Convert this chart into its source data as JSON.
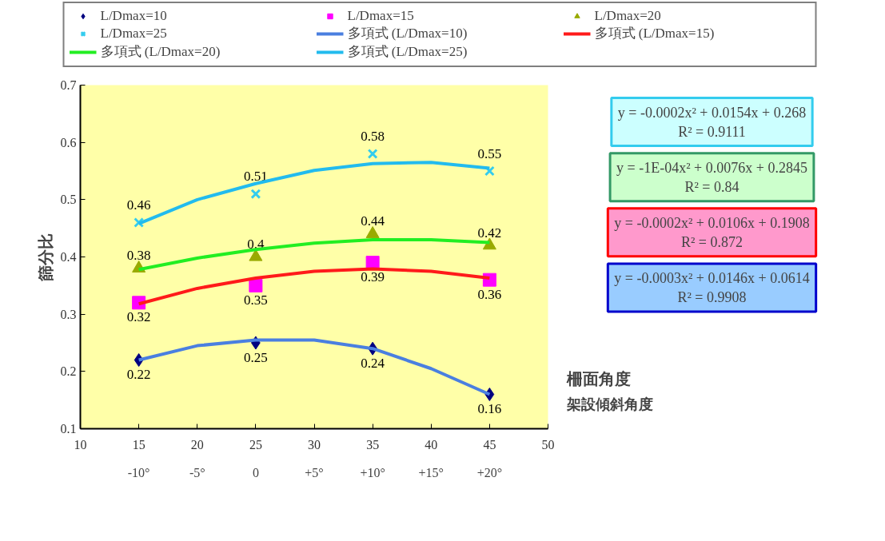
{
  "chart_data": {
    "type": "scatter",
    "xlabel": "柵面角度",
    "x2label": "架設傾斜角度",
    "ylabel": "篩分比",
    "xlim": [
      10,
      50
    ],
    "xticks": [
      10,
      15,
      20,
      25,
      30,
      35,
      40,
      45,
      50
    ],
    "x2lim": [
      -15,
      25
    ],
    "x2ticks": [
      {
        "value": -10,
        "label": "-10°"
      },
      {
        "value": -5,
        "label": "-5°"
      },
      0,
      {
        "value": 5,
        "label": "+5°"
      },
      {
        "value": 10,
        "label": "+10°"
      },
      {
        "value": 15,
        "label": "+15°"
      },
      {
        "value": 20,
        "label": "+20°"
      }
    ],
    "ylim": [
      0.1,
      0.7
    ],
    "yticks": [
      0.1,
      0.2,
      0.3,
      0.4,
      0.5,
      0.6,
      0.7
    ],
    "legend": "top",
    "annotations": [
      "y = -0.0002x² + 0.0154x + 0.268\nR² = 0.9111",
      "y = -1E-04x² + 0.0076x + 0.2845\nR² = 0.84",
      "y = -0.0002x² + 0.0106x + 0.1908\nR² = 0.872",
      "y = -0.0003x² + 0.0146x + 0.0614\nR² = 0.9908"
    ],
    "series": [
      {
        "name": "L/Dmax=10",
        "marker": "diamond",
        "color": "#000080",
        "x": [
          15,
          25,
          35,
          45
        ],
        "values": [
          0.22,
          0.25,
          0.24,
          0.16
        ],
        "value_labels": [
          "0.22",
          "0.25",
          "0.24",
          "0.16"
        ]
      },
      {
        "name": "L/Dmax=15",
        "marker": "square",
        "color": "#ff00ff",
        "x": [
          15,
          25,
          35,
          45
        ],
        "values": [
          0.32,
          0.35,
          0.39,
          0.36
        ],
        "value_labels": [
          "0.32",
          "0.35",
          "0.39",
          "0.36"
        ]
      },
      {
        "name": "L/Dmax=20",
        "marker": "triangle",
        "color": "#99aa00",
        "x": [
          15,
          25,
          35,
          45
        ],
        "values": [
          0.38,
          0.4,
          0.44,
          0.42
        ],
        "value_labels": [
          "0.38",
          "0.4",
          "0.44",
          "0.42"
        ]
      },
      {
        "name": "L/Dmax=25",
        "marker": "cross",
        "color": "#33ccee",
        "x": [
          15,
          25,
          35,
          45
        ],
        "values": [
          0.46,
          0.51,
          0.58,
          0.55
        ],
        "value_labels": [
          "0.46",
          "0.51",
          "0.58",
          "0.55"
        ]
      },
      {
        "name": "多項式 (L/Dmax=10)",
        "type": "line",
        "color": "#4a7fe0",
        "x": [
          15,
          20,
          25,
          30,
          35,
          40,
          45
        ],
        "values": [
          0.22,
          0.245,
          0.255,
          0.255,
          0.24,
          0.205,
          0.16
        ]
      },
      {
        "name": "多項式 (L/Dmax=15)",
        "type": "line",
        "color": "#ff1a1a",
        "x": [
          15,
          20,
          25,
          30,
          35,
          40,
          45
        ],
        "values": [
          0.318,
          0.345,
          0.363,
          0.375,
          0.379,
          0.375,
          0.363
        ]
      },
      {
        "name": "多項式 (L/Dmax=20)",
        "type": "line",
        "color": "#22ee22",
        "x": [
          15,
          20,
          25,
          30,
          35,
          40,
          45
        ],
        "values": [
          0.378,
          0.398,
          0.413,
          0.424,
          0.43,
          0.43,
          0.425
        ]
      },
      {
        "name": "多項式 (L/Dmax=25)",
        "type": "line",
        "color": "#22bbee",
        "x": [
          15,
          20,
          25,
          30,
          35,
          40,
          45
        ],
        "values": [
          0.458,
          0.5,
          0.528,
          0.551,
          0.563,
          0.565,
          0.555
        ]
      }
    ]
  }
}
